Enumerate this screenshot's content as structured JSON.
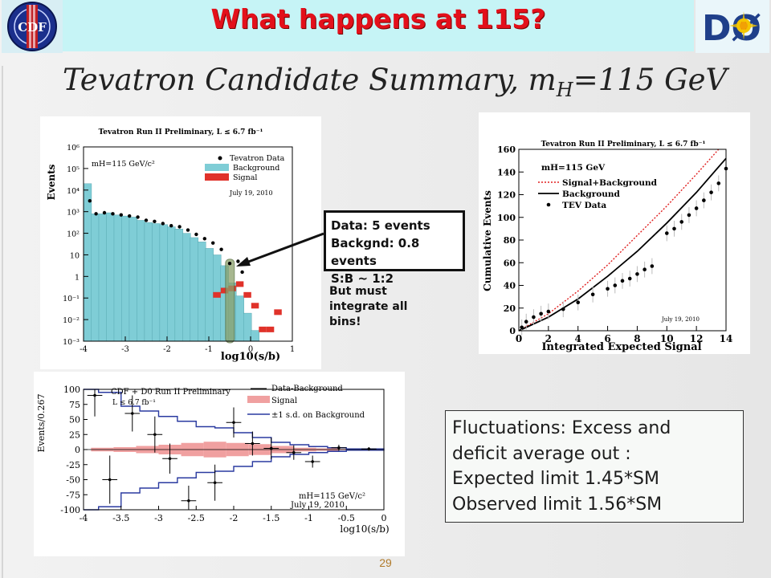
{
  "header": {
    "title": "What happens at 115?",
    "logo_left_text": "CDF",
    "logo_right_text": "DØ"
  },
  "subtitle": {
    "main": "Tevatron Candidate Summary, m",
    "sub": "H",
    "rest": "=115 GeV"
  },
  "callout": {
    "lines": [
      "Data: 5 events",
      "Backgnd: 0.8 events",
      "S:B ~ 1:2"
    ]
  },
  "note": {
    "lines": [
      "But must",
      "integrate all",
      "bins!"
    ]
  },
  "summary": {
    "lines": [
      "Fluctuations: Excess and",
      "deficit average out :",
      "Expected limit 1.45*SM",
      "Observed limit 1.56*SM"
    ]
  },
  "page_number": "29",
  "colors": {
    "background_fill": "#7fcdd6",
    "signal_fill": "#e0322a",
    "signal_band": "#f0a0a0",
    "band_line": "#2a3aa0",
    "highlight": "#8aa06a",
    "title_red": "#e3101b"
  },
  "chart_data": [
    {
      "type": "bar",
      "title": "Tevatron Run II Preliminary, L ≤ 6.7 fb⁻¹",
      "annotations": [
        "mH=115 GeV/c²",
        "July 19, 2010"
      ],
      "xlabel": "log10(s/b)",
      "ylabel": "Events",
      "log_y": true,
      "xlim": [
        -4,
        1
      ],
      "ylim_exp": [
        -3,
        6
      ],
      "xticks": [
        "-4",
        "-3",
        "-2",
        "-1",
        "0",
        "1"
      ],
      "yticks": [
        "10⁻³",
        "10⁻²",
        "10⁻¹",
        "1",
        "10",
        "10²",
        "10³",
        "10⁴",
        "10⁵",
        "10⁶"
      ],
      "legend": [
        "Tevatron Data",
        "Background",
        "Signal"
      ],
      "background_bins_log10": [
        4.3,
        2.9,
        2.9,
        2.95,
        2.85,
        2.8,
        2.75,
        2.6,
        2.5,
        2.45,
        2.4,
        2.3,
        2.2,
        2.0,
        1.8,
        1.6,
        1.3,
        1.0,
        0.5,
        -0.3,
        -0.9,
        -1.7,
        -2.5,
        -3.0,
        -3.0,
        -3.0
      ],
      "signal_bins_log10": [
        -2.7,
        -2.5,
        -2.4,
        -2.3,
        -2.2,
        -2.1,
        -2.0,
        -1.9,
        -1.8,
        -1.7,
        -1.6,
        -1.5,
        -1.4,
        -1.3,
        -1.2,
        -1.1,
        -1.0,
        -0.8,
        -0.6,
        -0.5,
        -0.3,
        -0.8,
        -1.3,
        -2.4,
        -2.4,
        -1.6
      ],
      "data_points": [
        [
          -3.85,
          3.5
        ],
        [
          -3.7,
          2.9
        ],
        [
          -3.5,
          2.95
        ],
        [
          -3.3,
          2.9
        ],
        [
          -3.1,
          2.85
        ],
        [
          -2.9,
          2.8
        ],
        [
          -2.7,
          2.75
        ],
        [
          -2.5,
          2.6
        ],
        [
          -2.3,
          2.55
        ],
        [
          -2.1,
          2.45
        ],
        [
          -1.9,
          2.35
        ],
        [
          -1.7,
          2.3
        ],
        [
          -1.5,
          2.15
        ],
        [
          -1.3,
          1.95
        ],
        [
          -1.1,
          1.75
        ],
        [
          -0.9,
          1.55
        ],
        [
          -0.7,
          1.25
        ],
        [
          -0.5,
          0.6
        ],
        [
          -0.3,
          0.7
        ],
        [
          -0.2,
          0.2
        ]
      ]
    },
    {
      "type": "line",
      "title": "Tevatron Run II Preliminary, L ≤ 6.7 fb⁻¹",
      "annotations": [
        "mH=115 GeV",
        "July 19, 2010"
      ],
      "xlabel": "Integrated Expected Signal",
      "ylabel": "Cumulative Events",
      "xlim": [
        0,
        14
      ],
      "ylim": [
        0,
        160
      ],
      "xticks": [
        "0",
        "2",
        "4",
        "6",
        "8",
        "10",
        "12",
        "14"
      ],
      "yticks": [
        "0",
        "20",
        "40",
        "60",
        "80",
        "100",
        "120",
        "140",
        "160"
      ],
      "series": [
        {
          "name": "Signal+Background",
          "style": "dotted-red",
          "x": [
            0,
            2,
            4,
            6,
            8,
            10,
            12,
            13.5
          ],
          "y": [
            0,
            15,
            35,
            58,
            84,
            110,
            138,
            160
          ]
        },
        {
          "name": "Background",
          "style": "solid-black",
          "x": [
            0,
            2,
            4,
            6,
            8,
            10,
            12,
            14
          ],
          "y": [
            0,
            12,
            28,
            48,
            70,
            95,
            122,
            152
          ]
        },
        {
          "name": "TEV Data",
          "style": "points",
          "x": [
            0.2,
            0.5,
            1,
            1.5,
            2,
            3,
            4,
            5,
            6,
            6.5,
            7,
            7.5,
            8,
            8.5,
            9,
            10,
            10.5,
            11,
            11.5,
            12,
            12.5,
            13,
            13.5,
            14
          ],
          "y": [
            3,
            8,
            12,
            15,
            17,
            19,
            25,
            32,
            37,
            40,
            44,
            46,
            50,
            54,
            57,
            86,
            90,
            96,
            102,
            108,
            115,
            122,
            130,
            143
          ]
        }
      ]
    },
    {
      "type": "bar",
      "title": "CDF + D0 Run II Preliminary",
      "annotations": [
        "L ≤ 6.7 fb⁻¹",
        "mH=115 GeV/c²",
        "July 19, 2010"
      ],
      "xlabel": "log10(s/b)",
      "ylabel": "Events/0.267",
      "xlim": [
        -4,
        0
      ],
      "ylim": [
        -100,
        100
      ],
      "xticks": [
        "-4",
        "-3.5",
        "-3",
        "-2.5",
        "-2",
        "-1.5",
        "-1",
        "-0.5",
        "0"
      ],
      "yticks": [
        "100",
        "75",
        "50",
        "25",
        "0",
        "-25",
        "-50",
        "-75",
        "-100"
      ],
      "legend": [
        "Data-Background",
        "Signal",
        "±1 s.d. on Background"
      ],
      "signal_x": [
        -3.75,
        -3.45,
        -3.15,
        -2.85,
        -2.55,
        -2.25,
        -1.95,
        -1.65,
        -1.35,
        -1.05,
        -0.75,
        -0.45
      ],
      "signal_values": [
        3,
        4,
        6,
        8,
        11,
        13,
        11,
        9,
        6,
        3,
        2,
        1
      ],
      "band_upper_x": [
        -4,
        -3.8,
        -3.5,
        -3.25,
        -3,
        -2.75,
        -2.5,
        -2.25,
        -2,
        -1.75,
        -1.5,
        -1.25,
        -1,
        -0.75,
        -0.5,
        0
      ],
      "band_upper_y": [
        100,
        95,
        72,
        64,
        55,
        47,
        38,
        36,
        28,
        20,
        12,
        8,
        5,
        3,
        1,
        0
      ],
      "band_lower_y": [
        -100,
        -95,
        -72,
        -64,
        -55,
        -47,
        -38,
        -36,
        -28,
        -20,
        -12,
        -8,
        -5,
        -3,
        -1,
        0
      ],
      "data_x": [
        -3.85,
        -3.65,
        -3.35,
        -3.05,
        -2.85,
        -2.6,
        -2.25,
        -2.0,
        -1.75,
        -1.5,
        -1.2,
        -0.95,
        -0.6,
        -0.2
      ],
      "data_y": [
        90,
        -50,
        60,
        25,
        -15,
        -85,
        -55,
        45,
        10,
        2,
        -5,
        -20,
        3,
        1
      ],
      "data_err": [
        35,
        40,
        30,
        30,
        25,
        25,
        30,
        25,
        20,
        18,
        12,
        10,
        5,
        3
      ]
    }
  ]
}
